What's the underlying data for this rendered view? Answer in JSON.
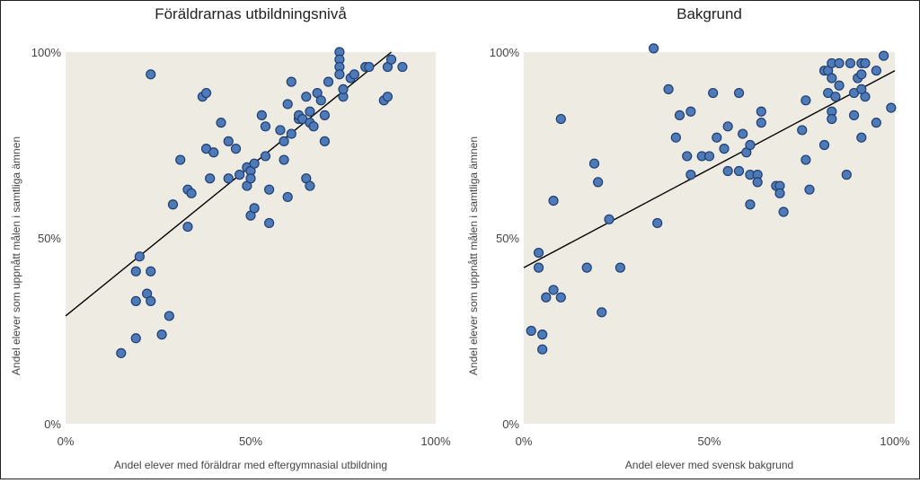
{
  "colors": {
    "plot_bg": "#eeebe2",
    "point_fill": "#4f7ab8",
    "point_stroke": "#1f3f73",
    "trend": "#000000"
  },
  "chart_data": [
    {
      "type": "scatter",
      "title": "Föräldrarnas utbildningsnivå",
      "xlabel": "Andel elever med föräldrar med eftergymnasial utbildning",
      "ylabel": "Andel elever som uppnått målen i samtliga ämnen",
      "xlim": [
        0,
        100
      ],
      "ylim": [
        0,
        100
      ],
      "xticks": [
        0,
        50,
        100
      ],
      "yticks": [
        0,
        50,
        100
      ],
      "xtick_labels": [
        "0%",
        "50%",
        "100%"
      ],
      "ytick_labels": [
        "0%",
        "50%",
        "100%"
      ],
      "trendline": [
        [
          0,
          29
        ],
        [
          88,
          100
        ]
      ],
      "points": [
        [
          15,
          19
        ],
        [
          19,
          23
        ],
        [
          19,
          33
        ],
        [
          19,
          41
        ],
        [
          20,
          45
        ],
        [
          22,
          35
        ],
        [
          23,
          41
        ],
        [
          23,
          33
        ],
        [
          23,
          94
        ],
        [
          26,
          24
        ],
        [
          28,
          29
        ],
        [
          29,
          59
        ],
        [
          31,
          71
        ],
        [
          33,
          53
        ],
        [
          33,
          63
        ],
        [
          34,
          62
        ],
        [
          37,
          88
        ],
        [
          38,
          74
        ],
        [
          38,
          89
        ],
        [
          39,
          66
        ],
        [
          40,
          73
        ],
        [
          42,
          81
        ],
        [
          44,
          76
        ],
        [
          44,
          66
        ],
        [
          46,
          74
        ],
        [
          47,
          67
        ],
        [
          49,
          64
        ],
        [
          49,
          69
        ],
        [
          50,
          56
        ],
        [
          50,
          68
        ],
        [
          50,
          66
        ],
        [
          51,
          70
        ],
        [
          51,
          58
        ],
        [
          53,
          83
        ],
        [
          54,
          80
        ],
        [
          54,
          72
        ],
        [
          55,
          63
        ],
        [
          55,
          54
        ],
        [
          58,
          79
        ],
        [
          59,
          71
        ],
        [
          59,
          76
        ],
        [
          60,
          86
        ],
        [
          60,
          61
        ],
        [
          61,
          78
        ],
        [
          61,
          92
        ],
        [
          63,
          82
        ],
        [
          63,
          83
        ],
        [
          64,
          82
        ],
        [
          65,
          88
        ],
        [
          65,
          66
        ],
        [
          66,
          81
        ],
        [
          66,
          84
        ],
        [
          66,
          64
        ],
        [
          67,
          80
        ],
        [
          68,
          89
        ],
        [
          69,
          87
        ],
        [
          70,
          83
        ],
        [
          70,
          76
        ],
        [
          71,
          92
        ],
        [
          74,
          100
        ],
        [
          74,
          98
        ],
        [
          74,
          96
        ],
        [
          74,
          94
        ],
        [
          75,
          88
        ],
        [
          75,
          90
        ],
        [
          77,
          93
        ],
        [
          78,
          94
        ],
        [
          81,
          96
        ],
        [
          82,
          96
        ],
        [
          86,
          87
        ],
        [
          87,
          88
        ],
        [
          87,
          96
        ],
        [
          88,
          98
        ],
        [
          91,
          96
        ]
      ]
    },
    {
      "type": "scatter",
      "title": "Bakgrund",
      "xlabel": "Andel elever med svensk bakgrund",
      "ylabel": "Andel elever som uppnått målen i samtliga ämnen",
      "xlim": [
        0,
        100
      ],
      "ylim": [
        0,
        100
      ],
      "xticks": [
        0,
        50,
        100
      ],
      "yticks": [
        0,
        50,
        100
      ],
      "xtick_labels": [
        "0%",
        "50%",
        "100%"
      ],
      "ytick_labels": [
        "0%",
        "50%",
        "100%"
      ],
      "trendline": [
        [
          0,
          42
        ],
        [
          100,
          95
        ]
      ],
      "points": [
        [
          2,
          25
        ],
        [
          4,
          46
        ],
        [
          4,
          42
        ],
        [
          5,
          20
        ],
        [
          5,
          24
        ],
        [
          6,
          34
        ],
        [
          8,
          36
        ],
        [
          8,
          60
        ],
        [
          10,
          34
        ],
        [
          10,
          82
        ],
        [
          17,
          42
        ],
        [
          19,
          70
        ],
        [
          20,
          65
        ],
        [
          21,
          30
        ],
        [
          23,
          55
        ],
        [
          26,
          42
        ],
        [
          35,
          101
        ],
        [
          36,
          54
        ],
        [
          39,
          90
        ],
        [
          41,
          77
        ],
        [
          42,
          83
        ],
        [
          44,
          72
        ],
        [
          45,
          67
        ],
        [
          45,
          84
        ],
        [
          48,
          72
        ],
        [
          50,
          72
        ],
        [
          51,
          89
        ],
        [
          52,
          77
        ],
        [
          54,
          74
        ],
        [
          55,
          68
        ],
        [
          55,
          80
        ],
        [
          58,
          68
        ],
        [
          58,
          89
        ],
        [
          59,
          78
        ],
        [
          60,
          73
        ],
        [
          61,
          75
        ],
        [
          61,
          67
        ],
        [
          61,
          59
        ],
        [
          63,
          67
        ],
        [
          63,
          65
        ],
        [
          64,
          81
        ],
        [
          64,
          84
        ],
        [
          68,
          64
        ],
        [
          69,
          64
        ],
        [
          69,
          62
        ],
        [
          70,
          57
        ],
        [
          75,
          79
        ],
        [
          76,
          71
        ],
        [
          76,
          87
        ],
        [
          77,
          63
        ],
        [
          81,
          75
        ],
        [
          81,
          95
        ],
        [
          82,
          95
        ],
        [
          82,
          89
        ],
        [
          83,
          93
        ],
        [
          83,
          84
        ],
        [
          83,
          97
        ],
        [
          84,
          88
        ],
        [
          85,
          91
        ],
        [
          85,
          97
        ],
        [
          87,
          67
        ],
        [
          88,
          97
        ],
        [
          89,
          83
        ],
        [
          89,
          89
        ],
        [
          90,
          93
        ],
        [
          91,
          97
        ],
        [
          91,
          77
        ],
        [
          91,
          94
        ],
        [
          92,
          97
        ],
        [
          92,
          88
        ],
        [
          95,
          95
        ],
        [
          95,
          81
        ],
        [
          97,
          99
        ],
        [
          99,
          85
        ],
        [
          83,
          82
        ],
        [
          91,
          90
        ]
      ]
    }
  ]
}
